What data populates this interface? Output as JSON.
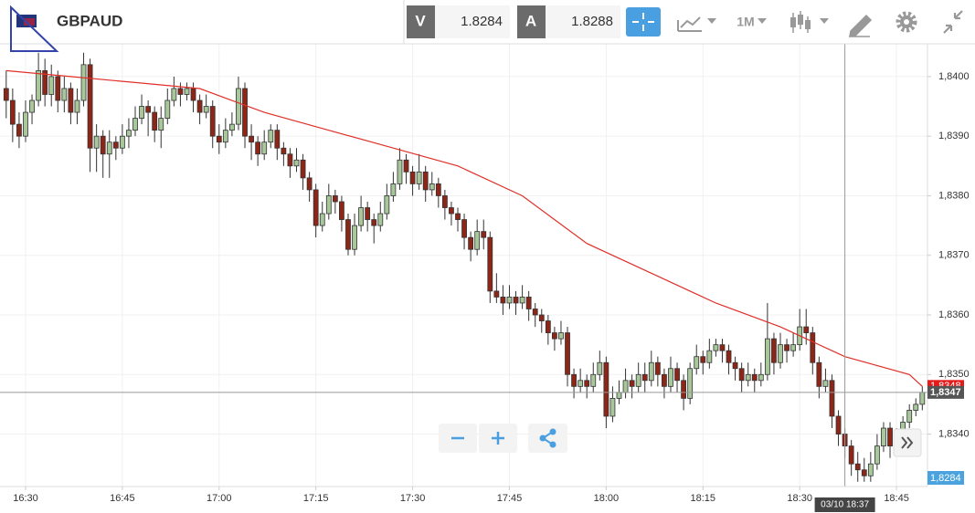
{
  "header": {
    "symbol": "GBPAUD",
    "bid_label": "V",
    "bid": "1.8284",
    "ask_label": "A",
    "ask": "1.8288",
    "timeframe": "1M"
  },
  "chart_data": {
    "type": "candlestick",
    "x": [
      "16:27",
      "16:28",
      "16:29",
      "16:30",
      "16:31",
      "16:32",
      "16:33",
      "16:34",
      "16:35",
      "16:36",
      "16:37",
      "16:38",
      "16:39",
      "16:40",
      "16:41",
      "16:42",
      "16:43",
      "16:44",
      "16:45",
      "16:46",
      "16:47",
      "16:48",
      "16:49",
      "16:50",
      "16:51",
      "16:52",
      "16:53",
      "16:54",
      "16:55",
      "16:56",
      "16:57",
      "16:58",
      "16:59",
      "17:00",
      "17:01",
      "17:02",
      "17:03",
      "17:04",
      "17:05",
      "17:06",
      "17:07",
      "17:08",
      "17:09",
      "17:10",
      "17:11",
      "17:12",
      "17:13",
      "17:14",
      "17:15",
      "17:16",
      "17:17",
      "17:18",
      "17:19",
      "17:20",
      "17:21",
      "17:22",
      "17:23",
      "17:24",
      "17:25",
      "17:26",
      "17:27",
      "17:28",
      "17:29",
      "17:30",
      "17:31",
      "17:32",
      "17:33",
      "17:34",
      "17:35",
      "17:36",
      "17:37",
      "17:38",
      "17:39",
      "17:40",
      "17:41",
      "17:42",
      "17:43",
      "17:44",
      "17:45",
      "17:46",
      "17:47",
      "17:48",
      "17:49",
      "17:50",
      "17:51",
      "17:52",
      "17:53",
      "17:54",
      "17:55",
      "17:56",
      "17:57",
      "17:58",
      "17:59",
      "18:00",
      "18:01",
      "18:02",
      "18:03",
      "18:04",
      "18:05",
      "18:06",
      "18:07",
      "18:08",
      "18:09",
      "18:10",
      "18:11",
      "18:12",
      "18:13",
      "18:14",
      "18:15",
      "18:16",
      "18:17",
      "18:18",
      "18:19",
      "18:20",
      "18:21",
      "18:22",
      "18:23",
      "18:24",
      "18:25",
      "18:26",
      "18:27",
      "18:28",
      "18:29",
      "18:30",
      "18:31",
      "18:32",
      "18:33",
      "18:34",
      "18:35",
      "18:36",
      "18:37",
      "18:38",
      "18:39",
      "18:40",
      "18:41",
      "18:42",
      "18:43",
      "18:44",
      "18:45",
      "18:46",
      "18:47",
      "18:48",
      "18:49"
    ],
    "candles": [
      [
        1.8398,
        1.8401,
        1.8393,
        1.8396
      ],
      [
        1.8396,
        1.8398,
        1.8389,
        1.8392
      ],
      [
        1.8392,
        1.8394,
        1.8388,
        1.839
      ],
      [
        1.839,
        1.8396,
        1.8389,
        1.8394
      ],
      [
        1.8394,
        1.8397,
        1.8392,
        1.8396
      ],
      [
        1.8396,
        1.8404,
        1.8395,
        1.8401
      ],
      [
        1.8401,
        1.8403,
        1.8395,
        1.8397
      ],
      [
        1.8397,
        1.8402,
        1.8395,
        1.84
      ],
      [
        1.84,
        1.8401,
        1.8394,
        1.8396
      ],
      [
        1.8396,
        1.84,
        1.8394,
        1.8398
      ],
      [
        1.8398,
        1.8399,
        1.8392,
        1.8394
      ],
      [
        1.8394,
        1.8398,
        1.8392,
        1.8396
      ],
      [
        1.8396,
        1.8404,
        1.8395,
        1.8402
      ],
      [
        1.8402,
        1.8403,
        1.8384,
        1.8388
      ],
      [
        1.8388,
        1.8392,
        1.8384,
        1.839
      ],
      [
        1.839,
        1.8391,
        1.8383,
        1.8387
      ],
      [
        1.8387,
        1.8391,
        1.8383,
        1.8389
      ],
      [
        1.8389,
        1.839,
        1.8386,
        1.8388
      ],
      [
        1.8388,
        1.8392,
        1.8387,
        1.839
      ],
      [
        1.839,
        1.8393,
        1.8388,
        1.8391
      ],
      [
        1.8391,
        1.8395,
        1.839,
        1.8393
      ],
      [
        1.8393,
        1.8397,
        1.8392,
        1.8395
      ],
      [
        1.8395,
        1.8396,
        1.839,
        1.8394
      ],
      [
        1.8394,
        1.8395,
        1.8389,
        1.8391
      ],
      [
        1.8391,
        1.8395,
        1.8388,
        1.8393
      ],
      [
        1.8393,
        1.8398,
        1.8392,
        1.8396
      ],
      [
        1.8396,
        1.84,
        1.8395,
        1.8398
      ],
      [
        1.8398,
        1.8399,
        1.8395,
        1.8397
      ],
      [
        1.8397,
        1.8399,
        1.8396,
        1.8398
      ],
      [
        1.8398,
        1.8399,
        1.8394,
        1.8396
      ],
      [
        1.8396,
        1.8397,
        1.8392,
        1.8394
      ],
      [
        1.8394,
        1.8397,
        1.8393,
        1.8395
      ],
      [
        1.8395,
        1.8396,
        1.8388,
        1.839
      ],
      [
        1.839,
        1.8392,
        1.8387,
        1.8389
      ],
      [
        1.8389,
        1.8393,
        1.8388,
        1.8391
      ],
      [
        1.8391,
        1.8394,
        1.839,
        1.8392
      ],
      [
        1.8392,
        1.84,
        1.8391,
        1.8398
      ],
      [
        1.8398,
        1.8399,
        1.8388,
        1.839
      ],
      [
        1.839,
        1.8392,
        1.8386,
        1.8389
      ],
      [
        1.8389,
        1.839,
        1.8385,
        1.8387
      ],
      [
        1.8387,
        1.8391,
        1.8386,
        1.8389
      ],
      [
        1.8389,
        1.8392,
        1.8388,
        1.8391
      ],
      [
        1.8391,
        1.8392,
        1.8386,
        1.8388
      ],
      [
        1.8388,
        1.8389,
        1.8385,
        1.8387
      ],
      [
        1.8387,
        1.8388,
        1.8383,
        1.8385
      ],
      [
        1.8385,
        1.8388,
        1.8384,
        1.8386
      ],
      [
        1.8386,
        1.8387,
        1.8381,
        1.8383
      ],
      [
        1.8383,
        1.8384,
        1.8379,
        1.8381
      ],
      [
        1.8381,
        1.8382,
        1.8373,
        1.8375
      ],
      [
        1.8375,
        1.8379,
        1.8374,
        1.8377
      ],
      [
        1.8377,
        1.8382,
        1.8376,
        1.838
      ],
      [
        1.838,
        1.8381,
        1.8377,
        1.8379
      ],
      [
        1.8379,
        1.838,
        1.8374,
        1.8376
      ],
      [
        1.8376,
        1.8377,
        1.837,
        1.8371
      ],
      [
        1.8371,
        1.8377,
        1.837,
        1.8375
      ],
      [
        1.8375,
        1.838,
        1.8374,
        1.8378
      ],
      [
        1.8378,
        1.8379,
        1.8374,
        1.8376
      ],
      [
        1.8376,
        1.8377,
        1.8372,
        1.8375
      ],
      [
        1.8375,
        1.8379,
        1.8374,
        1.8377
      ],
      [
        1.8377,
        1.8382,
        1.8376,
        1.838
      ],
      [
        1.838,
        1.8384,
        1.8379,
        1.8382
      ],
      [
        1.8382,
        1.8388,
        1.8381,
        1.8386
      ],
      [
        1.8386,
        1.8387,
        1.8382,
        1.8384
      ],
      [
        1.8384,
        1.8385,
        1.838,
        1.8382
      ],
      [
        1.8382,
        1.8387,
        1.8381,
        1.8384
      ],
      [
        1.8384,
        1.8385,
        1.8379,
        1.8381
      ],
      [
        1.8381,
        1.8384,
        1.838,
        1.8382
      ],
      [
        1.8382,
        1.8383,
        1.8378,
        1.838
      ],
      [
        1.838,
        1.8381,
        1.8376,
        1.8378
      ],
      [
        1.8378,
        1.8379,
        1.8375,
        1.8377
      ],
      [
        1.8377,
        1.8378,
        1.8374,
        1.8376
      ],
      [
        1.8376,
        1.8377,
        1.8371,
        1.8373
      ],
      [
        1.8373,
        1.8374,
        1.8369,
        1.8371
      ],
      [
        1.8371,
        1.8376,
        1.837,
        1.8374
      ],
      [
        1.8374,
        1.8376,
        1.8371,
        1.8373
      ],
      [
        1.8373,
        1.8374,
        1.8362,
        1.8364
      ],
      [
        1.8364,
        1.8367,
        1.8362,
        1.8363
      ],
      [
        1.8363,
        1.8365,
        1.836,
        1.8362
      ],
      [
        1.8362,
        1.8365,
        1.8361,
        1.8363
      ],
      [
        1.8363,
        1.8364,
        1.836,
        1.8362
      ],
      [
        1.8362,
        1.8365,
        1.8361,
        1.8363
      ],
      [
        1.8363,
        1.8364,
        1.8359,
        1.8361
      ],
      [
        1.8361,
        1.8362,
        1.8358,
        1.836
      ],
      [
        1.836,
        1.8361,
        1.8357,
        1.8359
      ],
      [
        1.8359,
        1.836,
        1.8355,
        1.8357
      ],
      [
        1.8357,
        1.8358,
        1.8354,
        1.8356
      ],
      [
        1.8356,
        1.8359,
        1.8355,
        1.8357
      ],
      [
        1.8357,
        1.8358,
        1.8348,
        1.835
      ],
      [
        1.835,
        1.8351,
        1.8346,
        1.8348
      ],
      [
        1.8348,
        1.8351,
        1.8347,
        1.8349
      ],
      [
        1.8349,
        1.835,
        1.8346,
        1.8348
      ],
      [
        1.8348,
        1.8352,
        1.8347,
        1.835
      ],
      [
        1.835,
        1.8354,
        1.8349,
        1.8352
      ],
      [
        1.8352,
        1.8353,
        1.8341,
        1.8343
      ],
      [
        1.8343,
        1.8348,
        1.8342,
        1.8346
      ],
      [
        1.8346,
        1.8349,
        1.8345,
        1.8347
      ],
      [
        1.8347,
        1.8351,
        1.8346,
        1.8349
      ],
      [
        1.8349,
        1.835,
        1.8346,
        1.8348
      ],
      [
        1.8348,
        1.8352,
        1.8347,
        1.835
      ],
      [
        1.835,
        1.8352,
        1.8347,
        1.8349
      ],
      [
        1.8349,
        1.8354,
        1.8348,
        1.8352
      ],
      [
        1.8352,
        1.8353,
        1.8348,
        1.835
      ],
      [
        1.835,
        1.8351,
        1.8346,
        1.8348
      ],
      [
        1.8348,
        1.8353,
        1.8347,
        1.8351
      ],
      [
        1.8351,
        1.8352,
        1.8347,
        1.8349
      ],
      [
        1.8349,
        1.835,
        1.8344,
        1.8346
      ],
      [
        1.8346,
        1.8352,
        1.8345,
        1.8351
      ],
      [
        1.8351,
        1.8355,
        1.835,
        1.8353
      ],
      [
        1.8353,
        1.8354,
        1.835,
        1.8352
      ],
      [
        1.8352,
        1.8356,
        1.8351,
        1.8354
      ],
      [
        1.8354,
        1.8356,
        1.8353,
        1.8355
      ],
      [
        1.8355,
        1.8356,
        1.8352,
        1.8354
      ],
      [
        1.8354,
        1.8355,
        1.835,
        1.8352
      ],
      [
        1.8352,
        1.8353,
        1.8349,
        1.8351
      ],
      [
        1.8351,
        1.8352,
        1.8347,
        1.8349
      ],
      [
        1.8349,
        1.8352,
        1.8348,
        1.835
      ],
      [
        1.835,
        1.8351,
        1.8347,
        1.8349
      ],
      [
        1.8349,
        1.8352,
        1.8348,
        1.835
      ],
      [
        1.835,
        1.8362,
        1.8349,
        1.8356
      ],
      [
        1.8356,
        1.8357,
        1.835,
        1.8352
      ],
      [
        1.8352,
        1.8357,
        1.8351,
        1.8355
      ],
      [
        1.8355,
        1.8356,
        1.8352,
        1.8354
      ],
      [
        1.8354,
        1.8357,
        1.8353,
        1.8355
      ],
      [
        1.8355,
        1.8361,
        1.8354,
        1.8358
      ],
      [
        1.8358,
        1.8361,
        1.8355,
        1.8357
      ],
      [
        1.8357,
        1.8358,
        1.835,
        1.8352
      ],
      [
        1.8352,
        1.8353,
        1.8346,
        1.8348
      ],
      [
        1.8348,
        1.8351,
        1.8347,
        1.8349
      ],
      [
        1.8349,
        1.835,
        1.8341,
        1.8343
      ],
      [
        1.8343,
        1.8344,
        1.8338,
        1.834
      ],
      [
        1.834,
        1.8341,
        1.8336,
        1.8338
      ],
      [
        1.8338,
        1.8339,
        1.8333,
        1.8335
      ],
      [
        1.8335,
        1.8337,
        1.8332,
        1.8334
      ],
      [
        1.8334,
        1.8336,
        1.8332,
        1.8333
      ],
      [
        1.8333,
        1.8337,
        1.8332,
        1.8335
      ],
      [
        1.8335,
        1.834,
        1.8334,
        1.8338
      ],
      [
        1.8338,
        1.8342,
        1.8337,
        1.8341
      ],
      [
        1.8341,
        1.8342,
        1.8336,
        1.8338
      ],
      [
        1.8338,
        1.8341,
        1.8337,
        1.834
      ],
      [
        1.834,
        1.8343,
        1.8339,
        1.8342
      ],
      [
        1.8342,
        1.8345,
        1.8341,
        1.8344
      ],
      [
        1.8344,
        1.8346,
        1.8343,
        1.8345
      ],
      [
        1.8345,
        1.8348,
        1.8344,
        1.8347
      ]
    ],
    "up_color": "#a8c79b",
    "down_color": "#8e2618",
    "ma": {
      "color": "#e0302a",
      "x": [
        "16:27",
        "16:37",
        "16:47",
        "16:57",
        "17:07",
        "17:17",
        "17:27",
        "17:37",
        "17:47",
        "17:57",
        "18:07",
        "18:17",
        "18:27",
        "18:37",
        "18:47",
        "18:49"
      ],
      "values": [
        1.8401,
        1.84,
        1.8399,
        1.8398,
        1.8394,
        1.8391,
        1.8388,
        1.8385,
        1.838,
        1.8372,
        1.8367,
        1.8362,
        1.8358,
        1.8353,
        1.835,
        1.8348
      ]
    },
    "ylim": [
      1.83312,
      1.84055
    ],
    "yticks": [
      {
        "value": 1.834,
        "label": "1,8340"
      },
      {
        "value": 1.835,
        "label": "1,8350"
      },
      {
        "value": 1.836,
        "label": "1,8360"
      },
      {
        "value": 1.837,
        "label": "1,8370"
      },
      {
        "value": 1.838,
        "label": "1,8380"
      },
      {
        "value": 1.839,
        "label": "1,8390"
      },
      {
        "value": 1.84,
        "label": "1,8400"
      }
    ],
    "xticks": [
      "16:30",
      "16:45",
      "17:00",
      "17:15",
      "17:30",
      "17:45",
      "18:00",
      "18:15",
      "18:30",
      "18:45"
    ],
    "grid": true,
    "ma_label": {
      "value": 1.8348,
      "label": "1,8348"
    },
    "crosshair": {
      "x": "18:37",
      "label": "03/10 18:37",
      "value": 1.8347,
      "value_label": "1,8347"
    },
    "bid_label": "1,8284"
  }
}
